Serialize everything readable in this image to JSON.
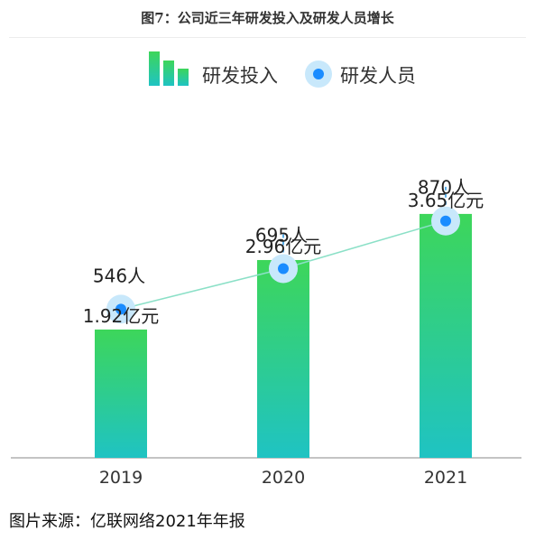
{
  "figure_title": "图7：公司近三年研发投入及研发人员增长",
  "source_note": "图片来源：亿联网络2021年年报",
  "colors": {
    "bar_top": "#3dd65a",
    "bar_bottom": "#1fc3c3",
    "dot": "#1a8cff",
    "dot_halo": "#c8e8fb",
    "line": "#8be0c7",
    "leader": "#5aaee8",
    "axis": "#888888"
  },
  "chart_data": {
    "type": "bar+line",
    "categories": [
      "2019",
      "2020",
      "2021"
    ],
    "legend": [
      "研发投入",
      "研发人员"
    ],
    "legend_position": "top-center",
    "bar_series": {
      "name": "研发投入",
      "values": [
        1.92,
        2.96,
        3.65
      ],
      "labels": [
        "1.92亿元",
        "2.96亿元",
        "3.65亿元"
      ],
      "ylim": [
        0,
        5.5
      ]
    },
    "line_series": {
      "name": "研发人员",
      "values": [
        546,
        695,
        870
      ],
      "labels": [
        "546人",
        "695人",
        "870人"
      ],
      "ylim": [
        0,
        1350
      ]
    },
    "grid": false
  }
}
